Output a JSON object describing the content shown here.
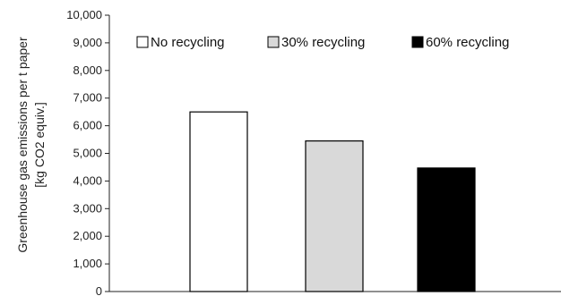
{
  "chart_data": {
    "type": "bar",
    "categories": [
      "No recycling",
      "30% recycling",
      "60% recycling"
    ],
    "values": [
      6500,
      5450,
      4470
    ],
    "colors": [
      "#ffffff",
      "#d9d9d9",
      "#000000"
    ],
    "ylabel_line1": "Greenhouse gas emissions per t paper",
    "ylabel_line2": "[kg CO2 equiv.]",
    "ylim": [
      0,
      10000
    ],
    "yticks": [
      0,
      1000,
      2000,
      3000,
      4000,
      5000,
      6000,
      7000,
      8000,
      9000,
      10000
    ],
    "ytick_labels": [
      "0",
      "1,000",
      "2,000",
      "3,000",
      "4,000",
      "5,000",
      "6,000",
      "7,000",
      "8,000",
      "9,000",
      "10,000"
    ],
    "legend": {
      "placement": "top",
      "items": [
        {
          "label": "No recycling",
          "color": "#ffffff"
        },
        {
          "label": "30% recycling",
          "color": "#d9d9d9"
        },
        {
          "label": "60% recycling",
          "color": "#000000"
        }
      ]
    }
  }
}
